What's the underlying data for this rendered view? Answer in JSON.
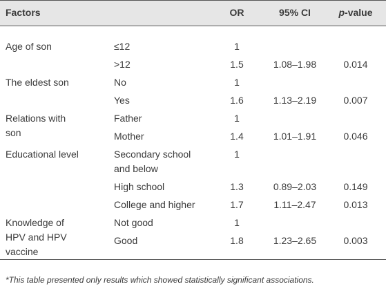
{
  "table": {
    "header": {
      "factors": "Factors",
      "or": "OR",
      "ci": "95% CI",
      "p": "p-value"
    },
    "groups": [
      {
        "factor": [
          "Age of son"
        ],
        "rows": [
          {
            "level": [
              "≤12"
            ],
            "or": 1
          },
          {
            "level": [
              ">12"
            ],
            "or": 1.5,
            "ci": "1.08–1.98",
            "p": 0.014
          }
        ]
      },
      {
        "factor": [
          "The eldest son"
        ],
        "rows": [
          {
            "level": [
              "No"
            ],
            "or": 1
          },
          {
            "level": [
              "Yes"
            ],
            "or": 1.6,
            "ci": "1.13–2.19",
            "p": 0.007
          }
        ]
      },
      {
        "factor": [
          "Relations with",
          "son"
        ],
        "rows": [
          {
            "level": [
              "Father"
            ],
            "or": 1
          },
          {
            "level": [
              "Mother"
            ],
            "or": 1.4,
            "ci": "1.01–1.91",
            "p": 0.046
          }
        ]
      },
      {
        "factor": [
          "Educational level"
        ],
        "rows": [
          {
            "level": [
              "Secondary school",
              "and below"
            ],
            "or": 1
          },
          {
            "level": [
              "High school"
            ],
            "or": 1.3,
            "ci": "0.89–2.03",
            "p": 0.149
          },
          {
            "level": [
              "College and higher"
            ],
            "or": 1.7,
            "ci": "1.11–2.47",
            "p": 0.013
          }
        ]
      },
      {
        "factor": [
          "Knowledge of",
          "HPV and HPV",
          "vaccine"
        ],
        "rows": [
          {
            "level": [
              "Not good"
            ],
            "or": 1
          },
          {
            "level": [
              "Good"
            ],
            "or": 1.8,
            "ci": "1.23–2.65",
            "p": 0.003
          }
        ]
      }
    ],
    "footnote": "*This table presented only results which showed statistically significant associations."
  }
}
